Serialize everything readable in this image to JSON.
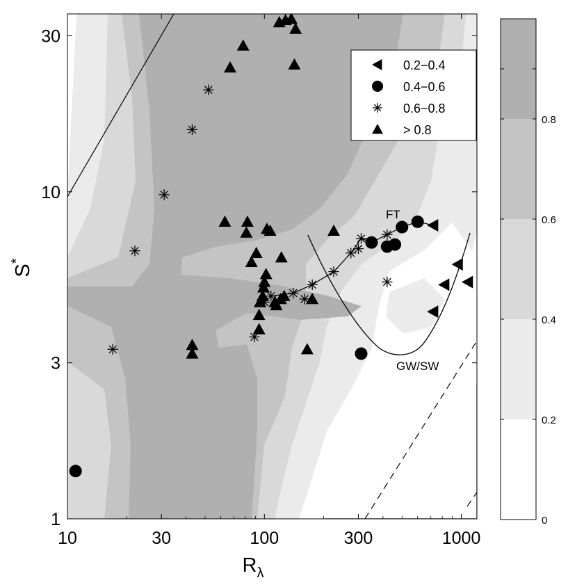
{
  "chart_data": {
    "type": "scatter",
    "title": "",
    "xlabel": "R",
    "xlabel_subscript": "λ",
    "ylabel": "S",
    "ylabel_superscript": "*",
    "x_scale": "log",
    "y_scale": "log",
    "xlim": [
      10,
      1200
    ],
    "ylim": [
      1,
      35
    ],
    "x_ticks": [
      10,
      30,
      100,
      300,
      1000
    ],
    "x_tick_labels": [
      "10",
      "30",
      "100",
      "300",
      "1000"
    ],
    "y_ticks": [
      1,
      3,
      10,
      30
    ],
    "y_tick_labels": [
      "1",
      "3",
      "10",
      "30"
    ],
    "grid": false,
    "legend_position": "top-right",
    "legend": [
      {
        "marker": "triangle-left",
        "label": "0.2−0.4"
      },
      {
        "marker": "circle",
        "label": "0.4−0.6"
      },
      {
        "marker": "asterisk",
        "label": "0.6−0.8"
      },
      {
        "marker": "triangle-up",
        "label": "> 0.8"
      }
    ],
    "colorbar": {
      "ticks": [
        0,
        0.2,
        0.4,
        0.6,
        0.8
      ],
      "tick_labels": [
        "0",
        "0.2",
        "0.4",
        "0.6",
        "0.8"
      ],
      "levels": [
        {
          "range": [
            0,
            0.2
          ],
          "color": "#ffffff"
        },
        {
          "range": [
            0.2,
            0.4
          ],
          "color": "#ebebeb"
        },
        {
          "range": [
            0.4,
            0.6
          ],
          "color": "#d9d9d9"
        },
        {
          "range": [
            0.6,
            0.8
          ],
          "color": "#c4c4c4"
        },
        {
          "range": [
            0.8,
            1.0
          ],
          "color": "#b0b0b0"
        }
      ]
    },
    "annotations": [
      {
        "text": "FT",
        "x": 450,
        "y": 8.3
      },
      {
        "text": "GW/SW",
        "x": 600,
        "y": 2.85
      }
    ],
    "series": [
      {
        "marker": "triangle-left",
        "points": [
          [
            720,
            7.9
          ],
          [
            960,
            6.0
          ],
          [
            1080,
            5.3
          ],
          [
            820,
            5.2
          ],
          [
            720,
            4.3
          ]
        ]
      },
      {
        "marker": "circle",
        "points": [
          [
            11,
            1.4
          ],
          [
            310,
            3.2
          ],
          [
            350,
            7.0
          ],
          [
            420,
            6.8
          ],
          [
            460,
            6.9
          ],
          [
            500,
            7.8
          ],
          [
            600,
            8.1
          ]
        ]
      },
      {
        "marker": "asterisk",
        "points": [
          [
            17,
            3.3
          ],
          [
            22,
            6.6
          ],
          [
            31,
            9.8
          ],
          [
            43,
            15.5
          ],
          [
            52,
            20.5
          ],
          [
            89,
            3.6
          ],
          [
            100,
            4.6
          ],
          [
            108,
            4.8
          ],
          [
            140,
            4.9
          ],
          [
            160,
            4.7
          ],
          [
            175,
            5.2
          ],
          [
            225,
            5.7
          ],
          [
            275,
            6.5
          ],
          [
            300,
            6.7
          ],
          [
            310,
            7.2
          ],
          [
            420,
            5.3
          ],
          [
            420,
            7.4
          ]
        ]
      },
      {
        "marker": "triangle-up",
        "points": [
          [
            43,
            3.2
          ],
          [
            43,
            3.4
          ],
          [
            63,
            8.1
          ],
          [
            67,
            24.0
          ],
          [
            78,
            28.0
          ],
          [
            81,
            7.5
          ],
          [
            82,
            8.1
          ],
          [
            86,
            6.1
          ],
          [
            91,
            6.5
          ],
          [
            94,
            3.8
          ],
          [
            94,
            4.2
          ],
          [
            95,
            4.6
          ],
          [
            98,
            4.8
          ],
          [
            99,
            5.1
          ],
          [
            100,
            5.3
          ],
          [
            102,
            5.6
          ],
          [
            103,
            7.7
          ],
          [
            107,
            7.6
          ],
          [
            113,
            4.6
          ],
          [
            115,
            4.5
          ],
          [
            119,
            33.0
          ],
          [
            121,
            4.7
          ],
          [
            122,
            6.3
          ],
          [
            126,
            4.8
          ],
          [
            128,
            33.5
          ],
          [
            137,
            33.8
          ],
          [
            142,
            24.5
          ],
          [
            144,
            31.5
          ],
          [
            165,
            3.3
          ],
          [
            175,
            4.7
          ],
          [
            225,
            7.6
          ]
        ]
      }
    ]
  }
}
